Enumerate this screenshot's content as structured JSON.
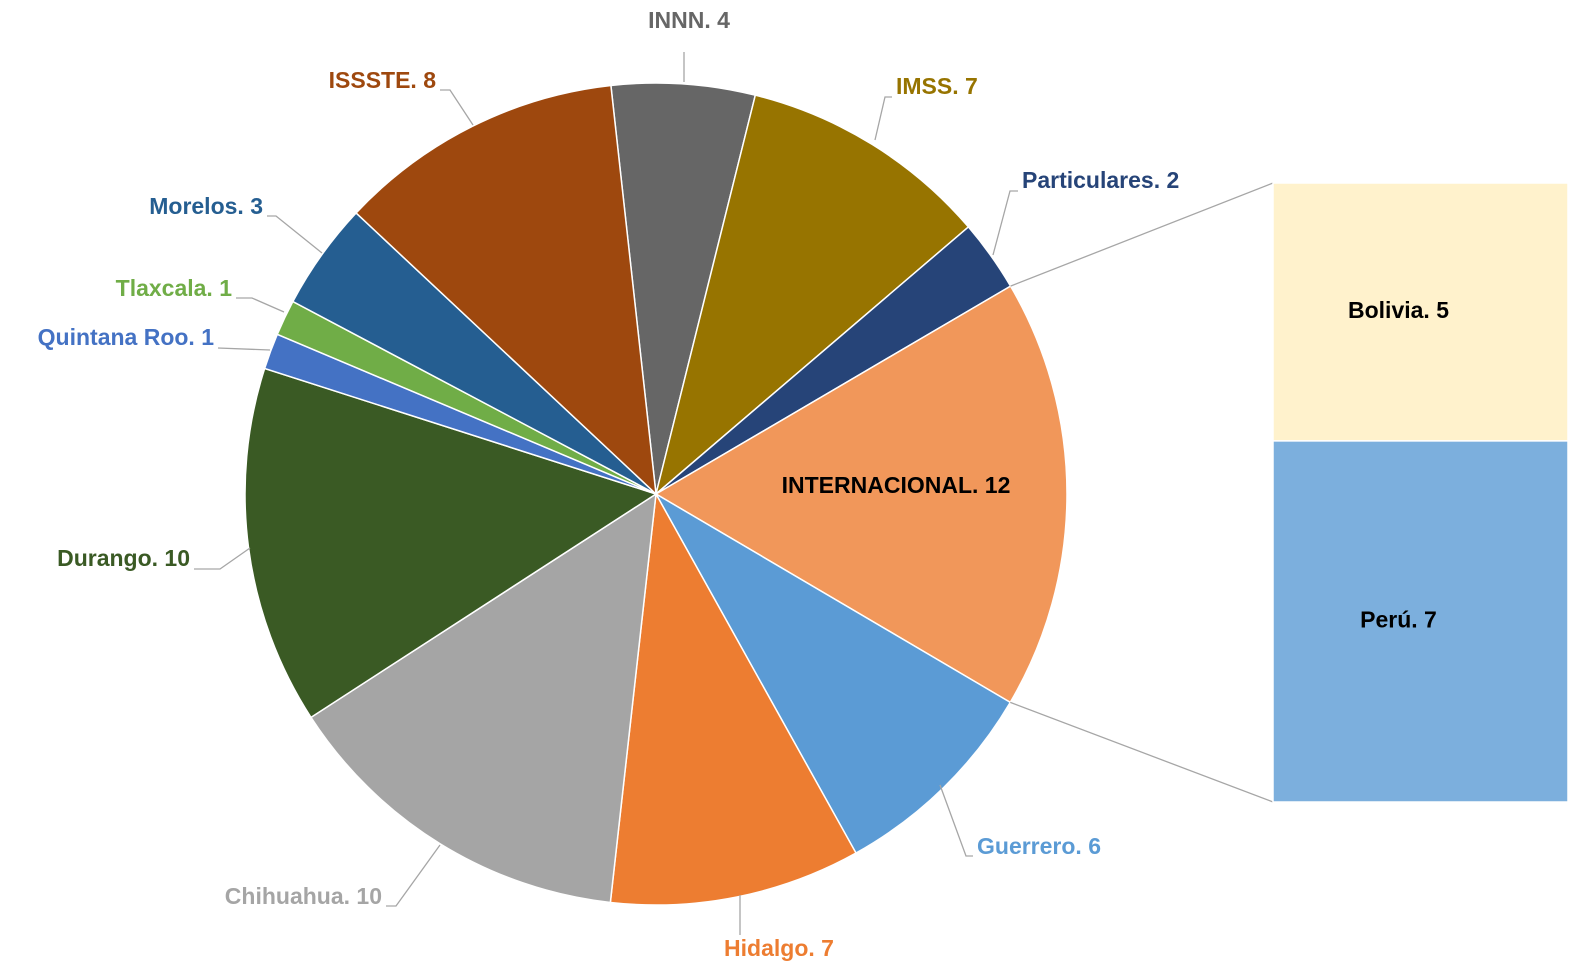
{
  "chart_data": {
    "type": "pie",
    "value_labels": [
      "INNN. 4",
      "IMSS. 7",
      "Particulares. 2",
      "INTERNACIONAL. 12",
      "Guerrero. 6",
      "Hidalgo. 7",
      "Chihuahua. 10",
      "Durango. 10",
      "Quintana Roo. 1",
      "Tlaxcala. 1",
      "Morelos. 3",
      "ISSSTE. 8"
    ],
    "values": [
      4,
      7,
      2,
      12,
      6,
      7,
      10,
      10,
      1,
      1,
      3,
      8
    ],
    "colors": [
      "#666666",
      "#977400",
      "#264478",
      "#f1975a",
      "#5b9bd5",
      "#ed7d31",
      "#a5a5a5",
      "#3a5a24",
      "#4472c4",
      "#70ad47",
      "#255e91",
      "#9e480e"
    ],
    "breakdown": {
      "value_labels": [
        "Bolivia. 5",
        "Perú. 7"
      ],
      "values": [
        5,
        7
      ],
      "colors": [
        "#fff2cc",
        "#7cafdd"
      ]
    }
  }
}
